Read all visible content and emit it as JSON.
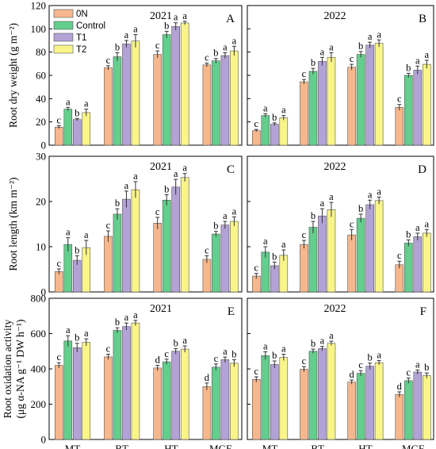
{
  "chart_data": {
    "type": "bar",
    "categories": [
      "MT",
      "BT",
      "HT",
      "MGF"
    ],
    "series_names": [
      "0N",
      "Control",
      "T1",
      "T2"
    ],
    "colors": {
      "0N": "#f7b78c",
      "Control": "#62cf8c",
      "T1": "#b3a2d6",
      "T2": "#faf589"
    },
    "rows": [
      {
        "ylabel": "Root dry weight (g m⁻²)",
        "ylim": [
          0,
          120
        ],
        "ticks": [
          0,
          20,
          40,
          60,
          80,
          100,
          120
        ],
        "panels": [
          {
            "letter": "A",
            "year": "2021",
            "values": [
              [
                15.5,
                66.5,
                78,
                69
              ],
              [
                31,
                76,
                95,
                72.5
              ],
              [
                22,
                87,
                102,
                77
              ],
              [
                28,
                89.5,
                105,
                81
              ]
            ],
            "errors": [
              [
                1.2,
                1.8,
                3.0,
                1.5
              ],
              [
                1.5,
                3.5,
                2.8,
                2.0
              ],
              [
                1.0,
                3.0,
                3.2,
                2.5
              ],
              [
                3.0,
                5.5,
                1.5,
                4.0
              ]
            ],
            "letters": [
              [
                "c",
                "c",
                "c",
                "c"
              ],
              [
                "a",
                "b",
                "b",
                "b"
              ],
              [
                "b",
                "a",
                "a",
                "a"
              ],
              [
                "a",
                "a",
                "a",
                "a"
              ]
            ]
          },
          {
            "letter": "B",
            "year": "2022",
            "values": [
              [
                12.5,
                54.5,
                67,
                32.5
              ],
              [
                25.5,
                63.5,
                78,
                60
              ],
              [
                18,
                72,
                86,
                64.5
              ],
              [
                23.5,
                75.5,
                87.5,
                69.5
              ]
            ],
            "errors": [
              [
                1.0,
                2.0,
                2.5,
                2.5
              ],
              [
                1.5,
                2.5,
                2.5,
                1.8
              ],
              [
                1.2,
                3.5,
                2.5,
                3.5
              ],
              [
                2.0,
                4.0,
                3.0,
                3.5
              ]
            ],
            "letters": [
              [
                "c",
                "c",
                "c",
                "c"
              ],
              [
                "a",
                "b",
                "b",
                "b"
              ],
              [
                "b",
                "a",
                "a",
                "a"
              ],
              [
                "a",
                "a",
                "a",
                "a"
              ]
            ]
          }
        ]
      },
      {
        "ylabel": "Root length (km m⁻²)",
        "ylim": [
          0,
          30
        ],
        "ticks": [
          0,
          10,
          20,
          30
        ],
        "panels": [
          {
            "letter": "C",
            "year": "2021",
            "values": [
              [
                4.5,
                12.3,
                15.2,
                7.2
              ],
              [
                10.5,
                17.2,
                20.3,
                12.8
              ],
              [
                7.0,
                20.5,
                23.2,
                14.8
              ],
              [
                9.8,
                22.6,
                25.3,
                15.6
              ]
            ],
            "errors": [
              [
                0.6,
                1.2,
                1.3,
                0.8
              ],
              [
                1.5,
                1.2,
                1.2,
                0.6
              ],
              [
                1.0,
                1.8,
                1.7,
                0.8
              ],
              [
                1.6,
                1.8,
                0.9,
                1.0
              ]
            ],
            "letters": [
              [
                "c",
                "c",
                "c",
                "c"
              ],
              [
                "a",
                "b",
                "b",
                "b"
              ],
              [
                "b",
                "a",
                "a",
                "a"
              ],
              [
                "a",
                "a",
                "a",
                "a"
              ]
            ]
          },
          {
            "letter": "D",
            "year": "2022",
            "values": [
              [
                3.5,
                10.5,
                12.6,
                6.0
              ],
              [
                8.8,
                14.3,
                16.3,
                10.8
              ],
              [
                5.8,
                16.8,
                19.3,
                12.2
              ],
              [
                8.1,
                18.2,
                20.2,
                13.0
              ]
            ],
            "errors": [
              [
                0.6,
                0.9,
                1.2,
                0.8
              ],
              [
                1.2,
                1.3,
                0.9,
                0.7
              ],
              [
                0.8,
                1.6,
                1.0,
                0.8
              ],
              [
                1.2,
                1.6,
                0.8,
                0.8
              ]
            ],
            "letters": [
              [
                "c",
                "c",
                "c",
                "c"
              ],
              [
                "a",
                "b",
                "b",
                "b"
              ],
              [
                "b",
                "a",
                "a",
                "a"
              ],
              [
                "a",
                "a",
                "a",
                "a"
              ]
            ]
          }
        ]
      },
      {
        "ylabel": "Root oxidation activity",
        "ylabel2": "(μg α-NA g⁻¹ DW h⁻¹)",
        "ylim": [
          0,
          800
        ],
        "ticks": [
          0,
          200,
          400,
          600,
          800
        ],
        "panels": [
          {
            "letter": "E",
            "year": "2021",
            "values": [
              [
                420,
                468,
                405,
                300
              ],
              [
                558,
                618,
                440,
                410
              ],
              [
                520,
                640,
                500,
                452
              ],
              [
                550,
                660,
                512,
                432
              ]
            ],
            "errors": [
              [
                15,
                15,
                15,
                20
              ],
              [
                30,
                15,
                15,
                18
              ],
              [
                25,
                20,
                15,
                15
              ],
              [
                20,
                15,
                18,
                20
              ]
            ],
            "letters": [
              [
                "c",
                "c",
                "d",
                "d"
              ],
              [
                "a",
                "b",
                "c",
                "c"
              ],
              [
                "b",
                "a",
                "b",
                "a"
              ],
              [
                "a",
                "a",
                "a",
                "b"
              ]
            ]
          },
          {
            "letter": "F",
            "year": "2022",
            "values": [
              [
                340,
                398,
                325,
                255
              ],
              [
                475,
                500,
                375,
                333
              ],
              [
                425,
                515,
                415,
                382
              ],
              [
                465,
                545,
                435,
                362
              ]
            ],
            "errors": [
              [
                15,
                15,
                12,
                15
              ],
              [
                22,
                12,
                15,
                15
              ],
              [
                20,
                12,
                18,
                12
              ],
              [
                18,
                12,
                12,
                15
              ]
            ],
            "letters": [
              [
                "c",
                "c",
                "d",
                "d"
              ],
              [
                "a",
                "b",
                "c",
                "c"
              ],
              [
                "b",
                "a",
                "b",
                "a"
              ],
              [
                "a",
                "a",
                "a",
                "b"
              ]
            ]
          }
        ]
      }
    ]
  }
}
